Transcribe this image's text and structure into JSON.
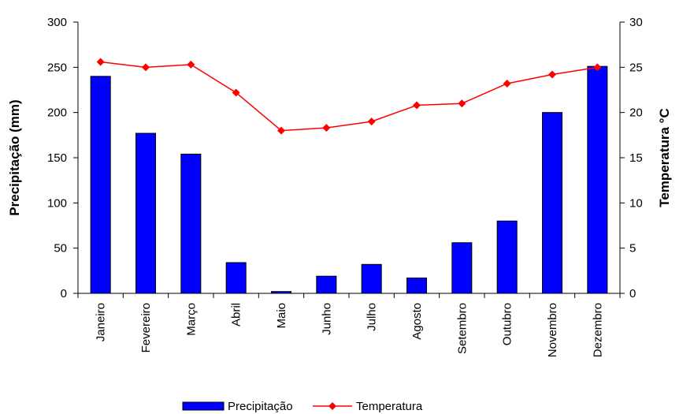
{
  "chart_data": {
    "type": "bar",
    "categories": [
      "Janeiro",
      "Fevereiro",
      "Março",
      "Abril",
      "Maio",
      "Junho",
      "Julho",
      "Agosto",
      "Setembro",
      "Outubro",
      "Novembro",
      "Dezembro"
    ],
    "series": [
      {
        "name": "Precipitação",
        "type": "bar",
        "axis": "left",
        "color": "#0000ff",
        "values": [
          240,
          177,
          154,
          34,
          2,
          19,
          32,
          17,
          56,
          80,
          200,
          251
        ]
      },
      {
        "name": "Temperatura",
        "type": "line",
        "axis": "right",
        "color": "#ff0000",
        "marker": "diamond",
        "values": [
          25.6,
          25.0,
          25.3,
          22.2,
          18.0,
          18.3,
          19.0,
          20.8,
          21.0,
          23.2,
          24.2,
          25.0
        ]
      }
    ],
    "ylabel": "Precipitação (mm)",
    "ylim": [
      0,
      300
    ],
    "yticks": [
      0,
      50,
      100,
      150,
      200,
      250,
      300
    ],
    "y2label": "Temperatura °C",
    "y2lim": [
      0,
      30
    ],
    "y2ticks": [
      0,
      5,
      10,
      15,
      20,
      25,
      30
    ],
    "grid": false,
    "legend_position": "bottom"
  }
}
